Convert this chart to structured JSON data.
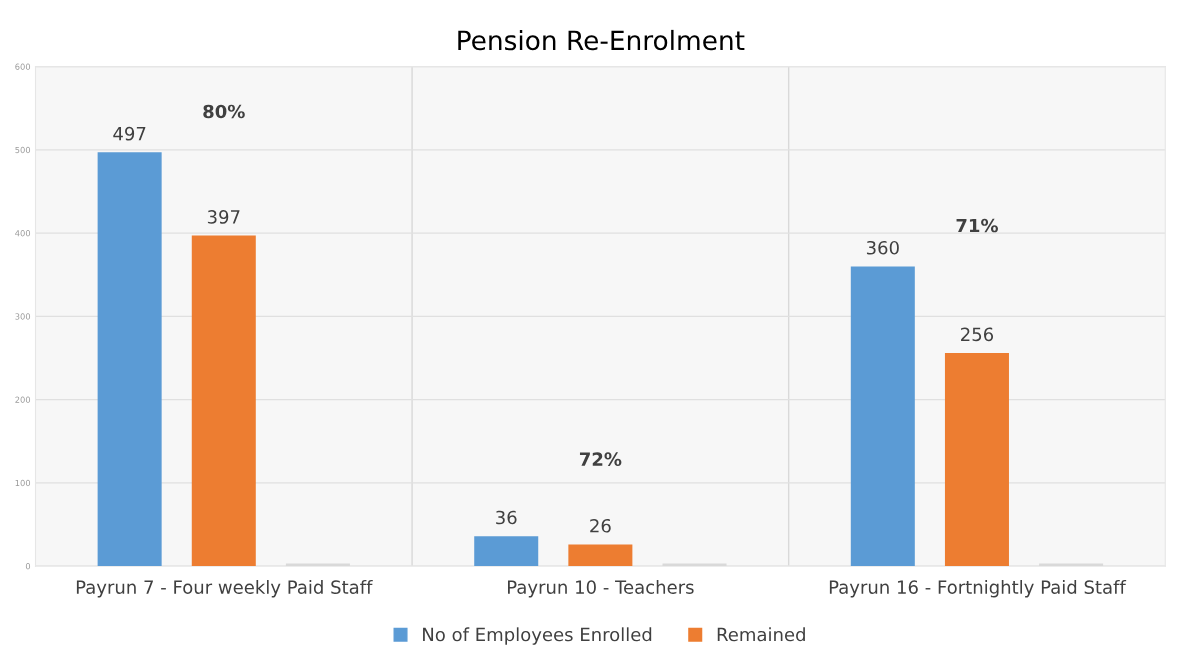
{
  "chart_data": {
    "type": "bar",
    "title": "Pension Re-Enrolment",
    "categories": [
      "Payrun 7 - Four weekly Paid Staff",
      "Payrun 10 - Teachers",
      "Payrun 16 - Fortnightly Paid Staff"
    ],
    "series": [
      {
        "name": "No of Employees Enrolled",
        "color": "#5b9bd5",
        "values": [
          497,
          36,
          360
        ],
        "value_labels": [
          "497",
          "36",
          "360"
        ]
      },
      {
        "name": "Remained",
        "color": "#ed7d31",
        "values": [
          397,
          26,
          256
        ],
        "value_labels": [
          "397",
          "26",
          "256"
        ]
      },
      {
        "color": "#d9d9d9",
        "values": [
          3,
          3,
          3
        ]
      }
    ],
    "annotations": [
      "80%",
      "72%",
      "71%"
    ],
    "ylim": [
      0,
      600
    ],
    "yticks": [
      0,
      100,
      200,
      300,
      400,
      500,
      600
    ],
    "grid": true,
    "legend": "bottom"
  }
}
